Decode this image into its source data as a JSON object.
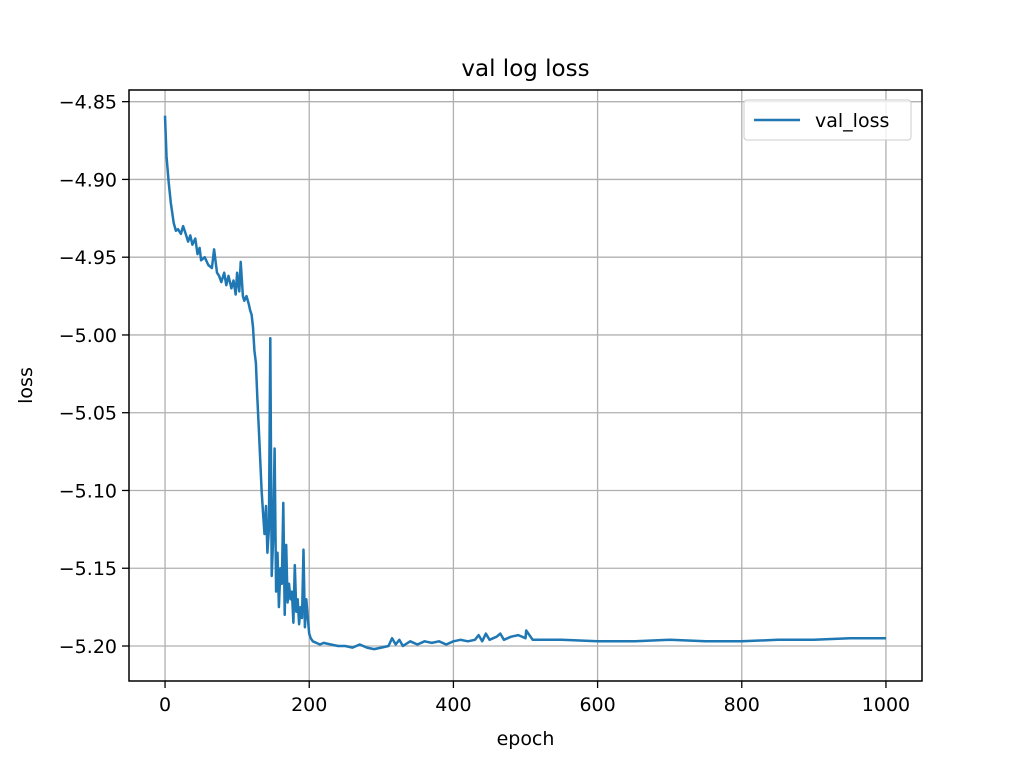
{
  "chart_data": {
    "type": "line",
    "title": "val log loss",
    "xlabel": "epoch",
    "ylabel": "loss",
    "xlim": [
      -50,
      1050
    ],
    "ylim": [
      -5.2225,
      -4.8425
    ],
    "xticks": [
      0,
      200,
      400,
      600,
      800,
      1000
    ],
    "xtick_labels": [
      "0",
      "200",
      "400",
      "600",
      "800",
      "1000"
    ],
    "yticks": [
      -4.85,
      -4.9,
      -4.95,
      -5.0,
      -5.05,
      -5.1,
      -5.15,
      -5.2
    ],
    "ytick_labels": [
      "−4.85",
      "−4.90",
      "−4.95",
      "−5.00",
      "−5.05",
      "−5.10",
      "−5.15",
      "−5.20"
    ],
    "grid": true,
    "legend": {
      "position": "upper-right",
      "entries": [
        "val_loss"
      ]
    },
    "series": [
      {
        "name": "val_loss",
        "color": "#1f77b4",
        "x": [
          0,
          2,
          5,
          8,
          12,
          15,
          18,
          22,
          25,
          28,
          32,
          35,
          38,
          42,
          45,
          48,
          50,
          55,
          60,
          65,
          68,
          72,
          75,
          78,
          82,
          85,
          88,
          92,
          95,
          98,
          100,
          103,
          105,
          108,
          110,
          113,
          116,
          118,
          120,
          122,
          124,
          126,
          128,
          130,
          132,
          134,
          136,
          138,
          140,
          142,
          144,
          146,
          148,
          150,
          152,
          154,
          156,
          158,
          160,
          162,
          164,
          166,
          168,
          170,
          172,
          174,
          176,
          178,
          180,
          182,
          184,
          186,
          188,
          190,
          192,
          194,
          196,
          198,
          200,
          202,
          205,
          210,
          215,
          220,
          230,
          240,
          250,
          260,
          270,
          280,
          290,
          300,
          310,
          315,
          320,
          325,
          330,
          340,
          350,
          360,
          370,
          380,
          390,
          400,
          410,
          420,
          430,
          435,
          440,
          445,
          450,
          460,
          465,
          470,
          480,
          490,
          500,
          501,
          510,
          550,
          600,
          650,
          700,
          750,
          800,
          850,
          900,
          950,
          1000
        ],
        "y": [
          -4.859,
          -4.885,
          -4.902,
          -4.915,
          -4.928,
          -4.933,
          -4.932,
          -4.935,
          -4.93,
          -4.934,
          -4.94,
          -4.936,
          -4.942,
          -4.938,
          -4.948,
          -4.944,
          -4.952,
          -4.95,
          -4.955,
          -4.957,
          -4.945,
          -4.96,
          -4.962,
          -4.966,
          -4.96,
          -4.968,
          -4.962,
          -4.97,
          -4.965,
          -4.974,
          -4.96,
          -4.972,
          -4.953,
          -4.975,
          -4.978,
          -4.975,
          -4.98,
          -4.984,
          -4.987,
          -4.995,
          -5.01,
          -5.018,
          -5.04,
          -5.06,
          -5.08,
          -5.1,
          -5.115,
          -5.128,
          -5.11,
          -5.14,
          -5.125,
          -5.002,
          -5.155,
          -5.13,
          -5.073,
          -5.165,
          -5.14,
          -5.175,
          -5.15,
          -5.16,
          -5.108,
          -5.18,
          -5.135,
          -5.172,
          -5.16,
          -5.17,
          -5.165,
          -5.185,
          -5.148,
          -5.178,
          -5.17,
          -5.186,
          -5.175,
          -5.182,
          -5.138,
          -5.188,
          -5.17,
          -5.182,
          -5.192,
          -5.195,
          -5.197,
          -5.198,
          -5.199,
          -5.198,
          -5.199,
          -5.2,
          -5.2,
          -5.201,
          -5.199,
          -5.201,
          -5.202,
          -5.201,
          -5.2,
          -5.195,
          -5.199,
          -5.196,
          -5.2,
          -5.197,
          -5.199,
          -5.197,
          -5.198,
          -5.197,
          -5.199,
          -5.197,
          -5.196,
          -5.197,
          -5.196,
          -5.193,
          -5.197,
          -5.192,
          -5.196,
          -5.194,
          -5.192,
          -5.196,
          -5.194,
          -5.193,
          -5.195,
          -5.19,
          -5.196,
          -5.196,
          -5.197,
          -5.197,
          -5.196,
          -5.197,
          -5.197,
          -5.196,
          -5.196,
          -5.195,
          -5.195
        ]
      }
    ]
  }
}
